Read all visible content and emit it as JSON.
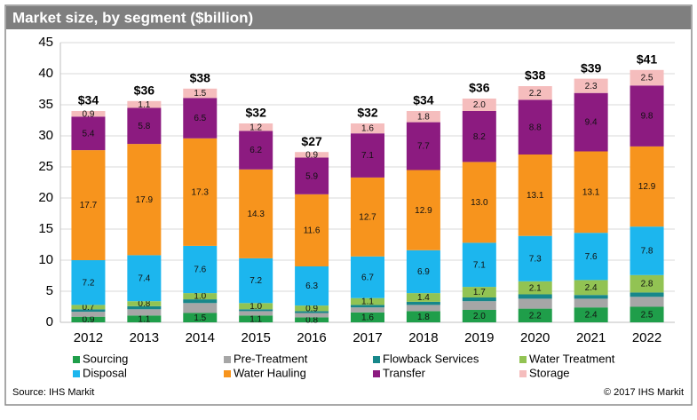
{
  "chart_data": {
    "type": "bar",
    "stacked": true,
    "title": "Market size, by segment ($billion)",
    "categories": [
      "2012",
      "2013",
      "2014",
      "2015",
      "2016",
      "2017",
      "2018",
      "2019",
      "2020",
      "2021",
      "2022"
    ],
    "total_labels": [
      "$34",
      "$36",
      "$38",
      "$32",
      "$27",
      "$32",
      "$34",
      "$36",
      "$38",
      "$39",
      "$41"
    ],
    "ylim": [
      0,
      45
    ],
    "yticks": [
      0,
      5,
      10,
      15,
      20,
      25,
      30,
      35,
      40,
      45
    ],
    "grid": true,
    "series": [
      {
        "name": "Sourcing",
        "color": "#1f9e4a",
        "values": [
          0.9,
          1.1,
          1.5,
          1.1,
          0.8,
          1.6,
          1.8,
          2.0,
          2.2,
          2.4,
          2.5
        ],
        "value_labels": [
          "0.9",
          "1.1",
          "1.5",
          "1.1",
          "0.8",
          "1.6",
          "1.8",
          "2.0",
          "2.2",
          "2.4",
          "2.5"
        ]
      },
      {
        "name": "Pre-Treatment",
        "color": "#a6a6a6",
        "values": [
          0.8,
          1.0,
          1.6,
          0.7,
          0.7,
          0.8,
          1.0,
          1.4,
          1.6,
          1.4,
          1.6
        ]
      },
      {
        "name": "Flowback Services",
        "color": "#17878a",
        "values": [
          0.4,
          0.5,
          0.6,
          0.3,
          0.3,
          0.4,
          0.5,
          0.6,
          0.7,
          0.6,
          0.7
        ]
      },
      {
        "name": "Water Treatment",
        "color": "#92c353",
        "values": [
          0.7,
          0.8,
          1.0,
          1.0,
          0.9,
          1.1,
          1.4,
          1.7,
          2.1,
          2.4,
          2.8
        ],
        "value_labels": [
          "0.7",
          "0.8",
          "1.0",
          "1.0",
          "0.9",
          "1.1",
          "1.4",
          "1.7",
          "2.1",
          "2.4",
          "2.8"
        ]
      },
      {
        "name": "Disposal",
        "color": "#1cb6ee",
        "values": [
          7.2,
          7.4,
          7.6,
          7.2,
          6.3,
          6.7,
          6.9,
          7.1,
          7.3,
          7.6,
          7.8
        ],
        "value_labels": [
          "7.2",
          "7.4",
          "7.6",
          "7.2",
          "6.3",
          "6.7",
          "6.9",
          "7.1",
          "7.3",
          "7.6",
          "7.8"
        ]
      },
      {
        "name": "Water Hauling",
        "color": "#f7941d",
        "values": [
          17.7,
          17.9,
          17.3,
          14.3,
          11.6,
          12.7,
          12.9,
          13.0,
          13.1,
          13.1,
          12.9
        ],
        "value_labels": [
          "17.7",
          "17.9",
          "17.3",
          "14.3",
          "11.6",
          "12.7",
          "12.9",
          "13.0",
          "13.1",
          "13.1",
          "12.9"
        ]
      },
      {
        "name": "Transfer",
        "color": "#8c1b80",
        "values": [
          5.4,
          5.8,
          6.5,
          6.2,
          5.9,
          7.1,
          7.7,
          8.2,
          8.8,
          9.4,
          9.8
        ],
        "value_labels": [
          "5.4",
          "5.8",
          "6.5",
          "6.2",
          "5.9",
          "7.1",
          "7.7",
          "8.2",
          "8.8",
          "9.4",
          "9.8"
        ]
      },
      {
        "name": "Storage",
        "color": "#f5bdbd",
        "values": [
          0.9,
          1.1,
          1.5,
          1.2,
          0.9,
          1.6,
          1.8,
          2.0,
          2.2,
          2.3,
          2.5
        ],
        "value_labels": [
          "0.9",
          "1.1",
          "1.5",
          "1.2",
          "0.9",
          "1.6",
          "1.8",
          "2.0",
          "2.2",
          "2.3",
          "2.5"
        ]
      }
    ],
    "source": "Source: IHS Markit",
    "copyright": "© 2017 IHS Markit"
  }
}
